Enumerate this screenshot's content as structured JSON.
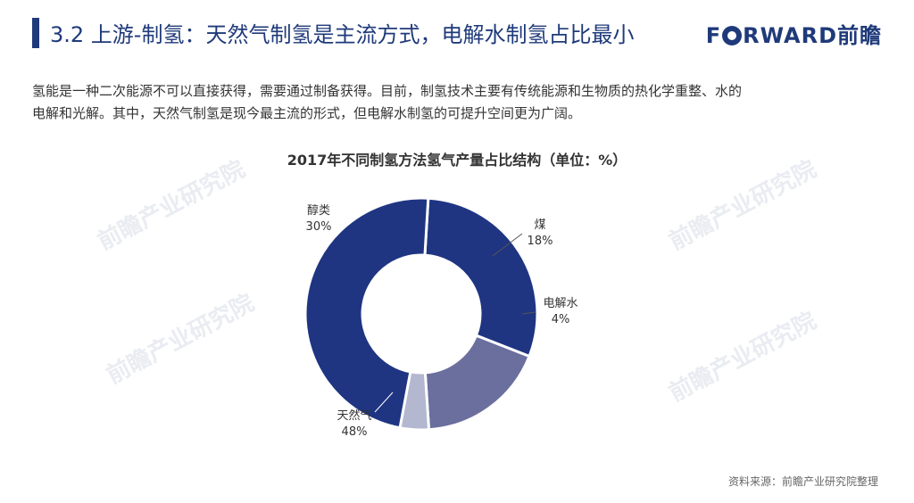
{
  "header": {
    "title": "3.2 上游-制氢：天然气制氢是主流方式，电解水制氢占比最小",
    "logo_f": "F",
    "logo_rest": "RWARD前瞻"
  },
  "intro": {
    "line1": "氢能是一种二次能源不可以直接获得，需要通过制备获得。目前，制氢技术主要有传统能源和生物质的热化学重整、水的",
    "line2": "电解和光解。其中，天然气制氢是现今最主流的形式，但电解水制氢的可提升空间更为广阔。"
  },
  "watermark": "前瞻产业研究院",
  "source": "资料来源：前瞻产业研究院整理",
  "chart_data": {
    "type": "pie",
    "title": "2017年不同制氢方法氢气产量占比结构（单位：%）",
    "categories": [
      "醇类",
      "煤",
      "电解水",
      "天然气"
    ],
    "values": [
      30,
      18,
      4,
      48
    ],
    "value_labels": [
      "30%",
      "18%",
      "4%",
      "48%"
    ],
    "colors": [
      "#1f3582",
      "#6b6f9e",
      "#b3b7cf",
      "#1f3582"
    ],
    "hole": "donut"
  }
}
